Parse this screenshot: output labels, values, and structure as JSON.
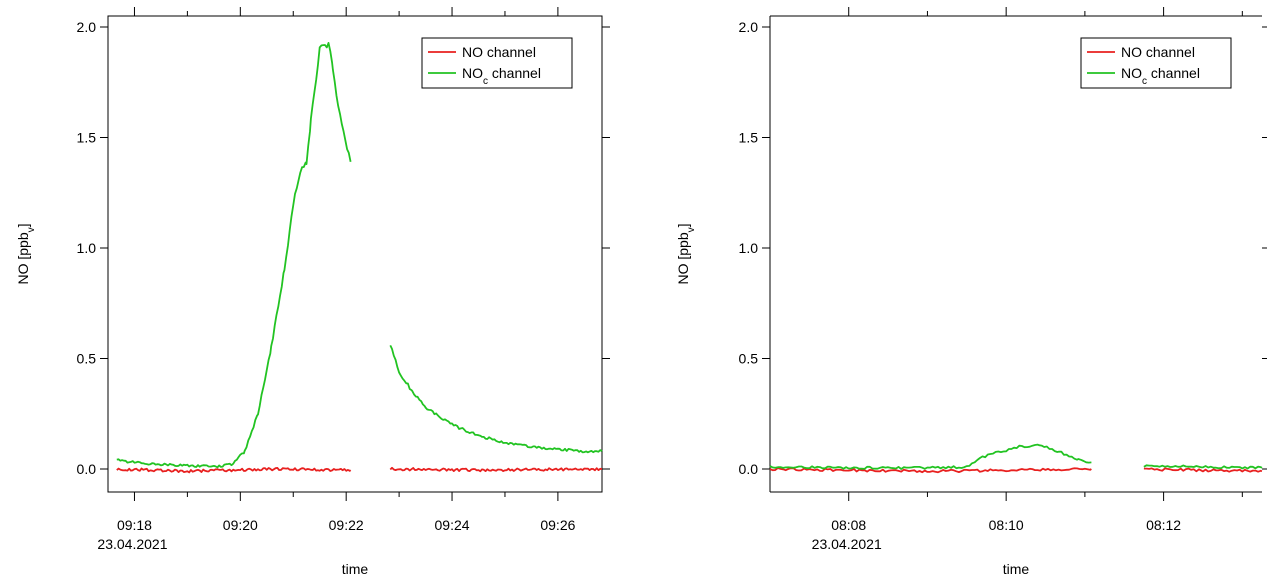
{
  "chart_data": [
    {
      "type": "line",
      "xlabel": "time",
      "ylabel": {
        "main": "NO  [ppb",
        "sub": "v",
        "close": "]"
      },
      "date_label": "23.04.2021",
      "ylim": [
        0,
        2.0
      ],
      "y_ticks": [
        {
          "value": 0,
          "label": "0.0"
        },
        {
          "value": 0.5,
          "label": "0.5"
        },
        {
          "value": 1.0,
          "label": "1.0"
        },
        {
          "value": 1.5,
          "label": "1.5"
        },
        {
          "value": 2.0,
          "label": "2.0"
        }
      ],
      "x_range": [
        "09:17:30",
        "09:26:50"
      ],
      "x_ticks": [
        {
          "value": "09:18",
          "label": "09:18"
        },
        {
          "value": "09:20",
          "label": "09:20"
        },
        {
          "value": "09:22",
          "label": "09:22"
        },
        {
          "value": "09:24",
          "label": "09:24"
        },
        {
          "value": "09:26",
          "label": "09:26"
        }
      ],
      "legend": {
        "position": "top-right",
        "entries": [
          {
            "main": "NO channel",
            "sub": "",
            "rest": "",
            "color": "#e8201f"
          },
          {
            "main": "NO",
            "sub": "c",
            "rest": " channel",
            "color": "#22c322"
          }
        ]
      },
      "series": [
        {
          "name": "NO channel",
          "color": "#e8201f",
          "segments": [
            {
              "x": [
                "09:17:40",
                "09:19:00",
                "09:20:30",
                "09:22:05"
              ],
              "y": [
                0.0,
                -0.01,
                0.0,
                -0.005
              ]
            },
            {
              "x": [
                "09:22:50",
                "09:24:30",
                "09:26:50"
              ],
              "y": [
                0.0,
                -0.005,
                0.0
              ]
            }
          ]
        },
        {
          "name": "NOc channel",
          "color": "#22c322",
          "segments": [
            {
              "x": [
                "09:17:40",
                "09:18:00",
                "09:18:30",
                "09:19:00",
                "09:19:30",
                "09:19:50",
                "09:20:05",
                "09:20:20",
                "09:20:35",
                "09:20:50",
                "09:21:00",
                "09:21:10",
                "09:21:15",
                "09:21:20",
                "09:21:30",
                "09:21:40",
                "09:21:45",
                "09:21:55",
                "09:22:05"
              ],
              "y": [
                0.04,
                0.03,
                0.02,
                0.015,
                0.01,
                0.02,
                0.08,
                0.25,
                0.55,
                0.9,
                1.2,
                1.37,
                1.38,
                1.58,
                1.9,
                1.93,
                1.8,
                1.55,
                1.39
              ]
            },
            {
              "x": [
                "09:22:50",
                "09:23:00",
                "09:23:15",
                "09:23:30",
                "09:24:00",
                "09:24:30",
                "09:25:00",
                "09:25:30",
                "09:26:00",
                "09:26:30",
                "09:26:50"
              ],
              "y": [
                0.56,
                0.44,
                0.35,
                0.28,
                0.2,
                0.15,
                0.12,
                0.1,
                0.09,
                0.08,
                0.08
              ]
            }
          ]
        }
      ]
    },
    {
      "type": "line",
      "xlabel": "time",
      "ylabel": {
        "main": "NO  [ppb",
        "sub": "v",
        "close": "]"
      },
      "date_label": "23.04.2021",
      "ylim": [
        0,
        2.0
      ],
      "y_ticks": [
        {
          "value": 0,
          "label": "0.0"
        },
        {
          "value": 0.5,
          "label": "0.5"
        },
        {
          "value": 1.0,
          "label": "1.0"
        },
        {
          "value": 1.5,
          "label": "1.5"
        },
        {
          "value": 2.0,
          "label": "2.0"
        }
      ],
      "x_range": [
        "08:07:00",
        "08:13:15"
      ],
      "x_ticks": [
        {
          "value": "08:08",
          "label": "08:08"
        },
        {
          "value": "08:10",
          "label": "08:10"
        },
        {
          "value": "08:12",
          "label": "08:12"
        }
      ],
      "legend": {
        "position": "top-right",
        "entries": [
          {
            "main": "NO channel",
            "sub": "",
            "rest": "",
            "color": "#e8201f"
          },
          {
            "main": "NO",
            "sub": "c",
            "rest": " channel",
            "color": "#22c322"
          }
        ]
      },
      "series": [
        {
          "name": "NO channel",
          "color": "#e8201f",
          "segments": [
            {
              "x": [
                "08:07:00",
                "08:08:00",
                "08:09:00",
                "08:10:00",
                "08:11:05"
              ],
              "y": [
                0.0,
                -0.005,
                -0.01,
                -0.005,
                0.0
              ]
            },
            {
              "x": [
                "08:11:45",
                "08:12:30",
                "08:13:15"
              ],
              "y": [
                0.0,
                -0.005,
                -0.01
              ]
            }
          ]
        },
        {
          "name": "NOc channel",
          "color": "#22c322",
          "segments": [
            {
              "x": [
                "08:07:00",
                "08:08:00",
                "08:09:00",
                "08:09:30",
                "08:09:40",
                "08:09:50",
                "08:10:10",
                "08:10:25",
                "08:10:40",
                "08:10:55",
                "08:11:05"
              ],
              "y": [
                0.01,
                0.005,
                0.005,
                0.01,
                0.05,
                0.07,
                0.1,
                0.11,
                0.08,
                0.04,
                0.03
              ]
            },
            {
              "x": [
                "08:11:45",
                "08:12:30",
                "08:13:15"
              ],
              "y": [
                0.015,
                0.01,
                0.005
              ]
            }
          ]
        }
      ]
    }
  ]
}
